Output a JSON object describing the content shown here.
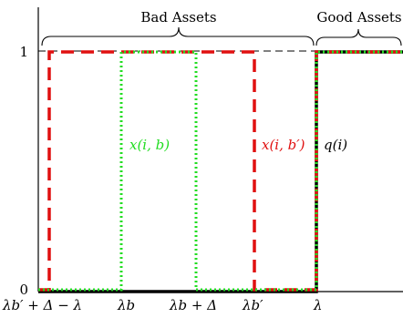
{
  "braces": {
    "bad_assets": "Bad Assets",
    "good_assets": "Good Assets"
  },
  "y_ticks": {
    "one": "1",
    "zero": "0"
  },
  "x_ticks": {
    "t1": "λb′ + Δ − λ",
    "t2": "λb",
    "t3": "λb + Δ",
    "t4": "λb′",
    "t5": "λ"
  },
  "curve_labels": {
    "x_ib": "x(i, b)",
    "x_ibprime": "x(i, b′)",
    "q_i": "q(i)"
  },
  "colors": {
    "green": "#22dd22",
    "red": "#e01010",
    "black": "#000000"
  }
}
